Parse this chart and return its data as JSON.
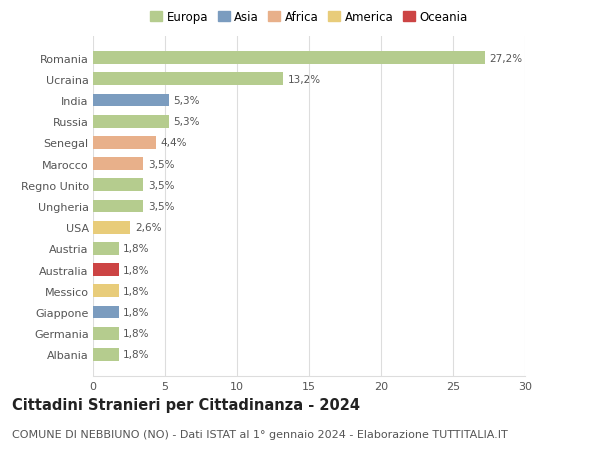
{
  "categories": [
    "Romania",
    "Ucraina",
    "India",
    "Russia",
    "Senegal",
    "Marocco",
    "Regno Unito",
    "Ungheria",
    "USA",
    "Austria",
    "Australia",
    "Messico",
    "Giappone",
    "Germania",
    "Albania"
  ],
  "values": [
    27.2,
    13.2,
    5.3,
    5.3,
    4.4,
    3.5,
    3.5,
    3.5,
    2.6,
    1.8,
    1.8,
    1.8,
    1.8,
    1.8,
    1.8
  ],
  "labels": [
    "27,2%",
    "13,2%",
    "5,3%",
    "5,3%",
    "4,4%",
    "3,5%",
    "3,5%",
    "3,5%",
    "2,6%",
    "1,8%",
    "1,8%",
    "1,8%",
    "1,8%",
    "1,8%",
    "1,8%"
  ],
  "colors": [
    "#b5cc8e",
    "#b5cc8e",
    "#7b9cbf",
    "#b5cc8e",
    "#e8b08a",
    "#e8b08a",
    "#b5cc8e",
    "#b5cc8e",
    "#e8cc7a",
    "#b5cc8e",
    "#cc4444",
    "#e8cc7a",
    "#7b9cbf",
    "#b5cc8e",
    "#b5cc8e"
  ],
  "continents": [
    "Europa",
    "Asia",
    "Africa",
    "America",
    "Oceania"
  ],
  "legend_colors": [
    "#b5cc8e",
    "#7b9cbf",
    "#e8b08a",
    "#e8cc7a",
    "#cc4444"
  ],
  "title": "Cittadini Stranieri per Cittadinanza - 2024",
  "subtitle": "COMUNE DI NEBBIUNO (NO) - Dati ISTAT al 1° gennaio 2024 - Elaborazione TUTTITALIA.IT",
  "xlim": [
    0,
    30
  ],
  "xticks": [
    0,
    5,
    10,
    15,
    20,
    25,
    30
  ],
  "bg_color": "#ffffff",
  "grid_color": "#dddddd",
  "bar_height": 0.6,
  "title_fontsize": 10.5,
  "subtitle_fontsize": 8,
  "label_fontsize": 7.5,
  "tick_fontsize": 8,
  "legend_fontsize": 8.5
}
